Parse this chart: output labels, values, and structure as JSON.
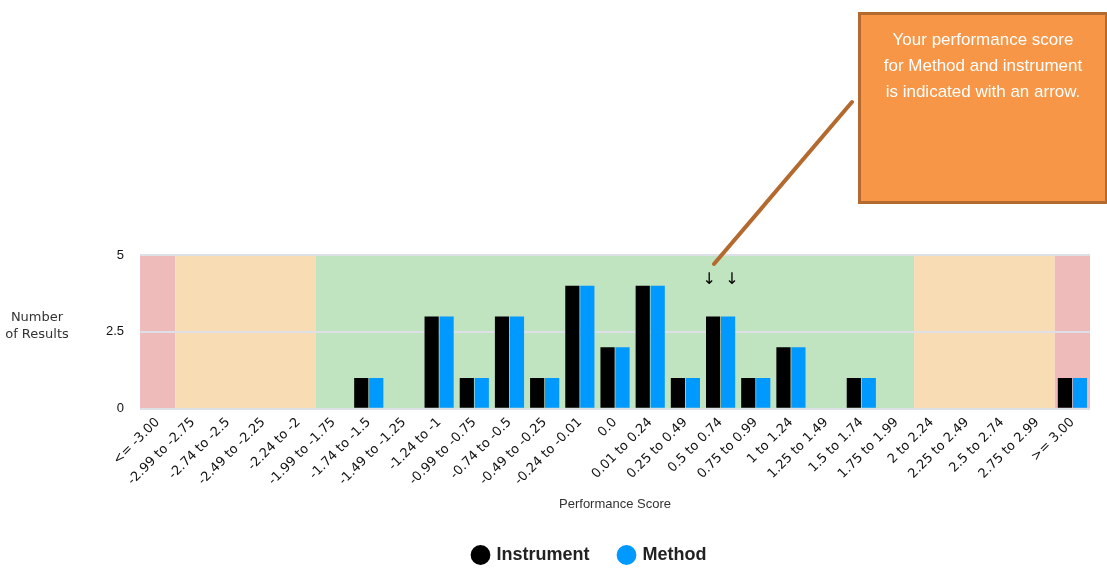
{
  "chart_data": {
    "type": "bar",
    "xlabel": "Performance Score",
    "ylabel": "Number of Results",
    "categories": [
      "<= -3.00",
      "-2.99 to -2.75",
      "-2.74 to -2.5",
      "-2.49 to -2.25",
      "-2.24 to -2",
      "-1.99 to -1.75",
      "-1.74 to -1.5",
      "-1.49 to -1.25",
      "-1.24 to -1",
      "-0.99 to -0.75",
      "-0.74 to -0.5",
      "-0.49 to -0.25",
      "-0.24 to -0.01",
      "0.0",
      "0.01 to 0.24",
      "0.25 to 0.49",
      "0.5 to 0.74",
      "0.75 to 0.99",
      "1 to 1.24",
      "1.25 to 1.49",
      "1.5 to 1.74",
      "1.75 to 1.99",
      "2 to 2.24",
      "2.25 to 2.49",
      "2.5 to 2.74",
      "2.75 to 2.99",
      ">= 3.00"
    ],
    "series": [
      {
        "name": "Instrument",
        "color": "#000000",
        "values": [
          0,
          0,
          0,
          0,
          0,
          0,
          1,
          0,
          3,
          1,
          3,
          1,
          4,
          2,
          4,
          1,
          3,
          1,
          2,
          0,
          1,
          0,
          0,
          0,
          0,
          0,
          1
        ]
      },
      {
        "name": "Method",
        "color": "#0099ff",
        "values": [
          0,
          0,
          0,
          0,
          0,
          0,
          1,
          0,
          3,
          1,
          3,
          1,
          4,
          2,
          4,
          1,
          3,
          1,
          2,
          0,
          1,
          0,
          0,
          0,
          0,
          0,
          1
        ]
      }
    ],
    "ylim": [
      0,
      5
    ],
    "yticks": [
      0,
      2.5,
      5
    ],
    "grid": "y",
    "legend": "bottom",
    "bands": [
      {
        "axis": "x",
        "from": "<= -3.00",
        "to": "<= -3.00",
        "color": "#efbaba"
      },
      {
        "axis": "x",
        "from": "-2.99 to -2.75",
        "to": "-2.24 to -2",
        "color": "#f8dcb4"
      },
      {
        "axis": "x",
        "from": "-1.99 to -1.75",
        "to": "1.75 to 1.99",
        "color": "#c0e3c0"
      },
      {
        "axis": "x",
        "from": "2 to 2.24",
        "to": "2.75 to 2.99",
        "color": "#f8dcb4"
      },
      {
        "axis": "x",
        "from": ">= 3.00",
        "to": ">= 3.00",
        "color": "#efbaba"
      }
    ],
    "annotations": [
      "Your performance score for Method and instrument is indicated with an arrow.",
      {
        "text": "↓",
        "x": "0.5 to 0.74",
        "y": 3
      },
      {
        "text": "↓",
        "x": "0.5 to 0.74",
        "y": 3
      }
    ]
  }
}
